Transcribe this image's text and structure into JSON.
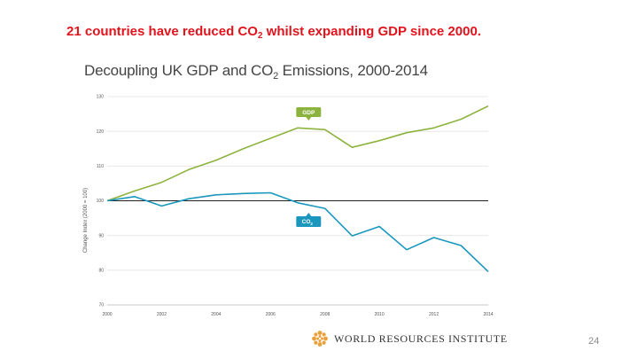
{
  "slide": {
    "headline_pre": "21 countries have reduced CO",
    "headline_sub": "2",
    "headline_post": " whilst expanding GDP since 2000.",
    "page_number": "24"
  },
  "logo": {
    "text": "WORLD RESOURCES INSTITUTE"
  },
  "chart_data": {
    "type": "line",
    "title_pre": "Decoupling UK GDP and CO",
    "title_sub": "2",
    "title_post": " Emissions, 2000-2014",
    "xlabel": "",
    "ylabel": "Change Index (2000 = 100)",
    "xlim": [
      2000,
      2014
    ],
    "ylim": [
      70,
      130
    ],
    "yticks": [
      70,
      80,
      90,
      100,
      110,
      120,
      130
    ],
    "xticks": [
      2000,
      2002,
      2004,
      2006,
      2008,
      2010,
      2012,
      2014
    ],
    "baseline": 100,
    "x": [
      2000,
      2001,
      2002,
      2003,
      2004,
      2005,
      2006,
      2007,
      2008,
      2009,
      2010,
      2011,
      2012,
      2013,
      2014
    ],
    "series": [
      {
        "name": "GDP",
        "label_main": "GDP",
        "label_sub": "",
        "color": "#8db33f",
        "label_at_year": 2007.4,
        "values": [
          100,
          102.8,
          105.3,
          109.0,
          111.7,
          115.0,
          118.0,
          121.0,
          120.5,
          115.4,
          117.3,
          119.6,
          121.0,
          123.5,
          127.3
        ]
      },
      {
        "name": "CO2",
        "label_main": "CO",
        "label_sub": "2",
        "color": "#1b97be",
        "label_at_year": 2007.4,
        "values": [
          100,
          101.2,
          98.5,
          100.6,
          101.7,
          102.1,
          102.3,
          99.4,
          97.8,
          89.9,
          92.6,
          85.9,
          89.4,
          87.1,
          79.6
        ]
      }
    ]
  }
}
